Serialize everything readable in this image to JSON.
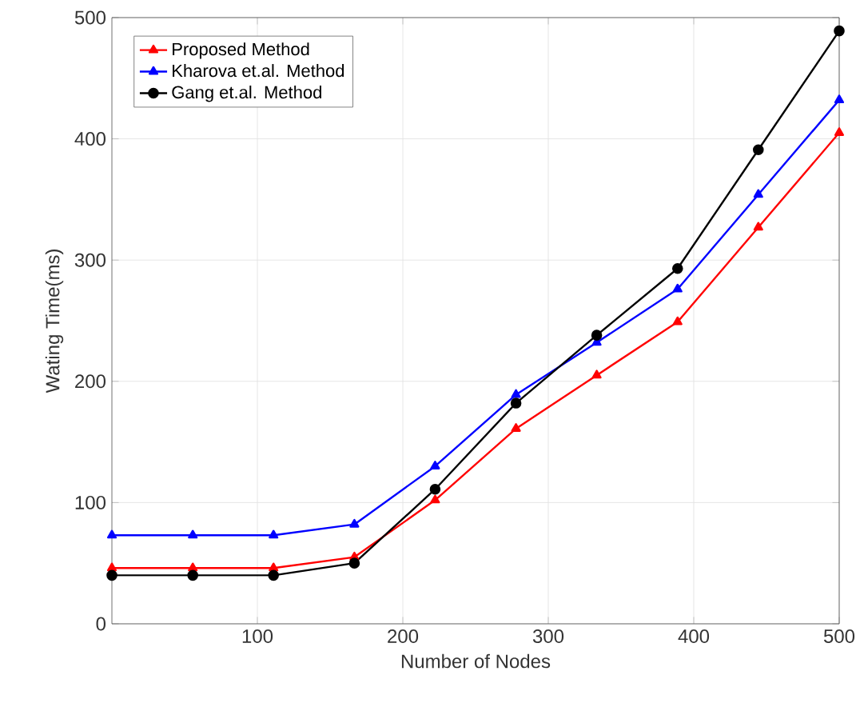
{
  "chart_data": {
    "type": "line",
    "xlabel": "Number of Nodes",
    "ylabel": "Wating Time(ms)",
    "x": [
      0,
      55.6,
      111.1,
      166.7,
      222.2,
      277.8,
      333.3,
      388.9,
      444.4,
      500
    ],
    "series": [
      {
        "name": "Proposed Method",
        "color": "#ff0000",
        "marker": "triangle",
        "values": [
          46,
          46,
          46,
          55,
          102,
          161,
          205,
          249,
          327,
          405
        ]
      },
      {
        "name": "Kharova et.al. Method",
        "color": "#0000ff",
        "marker": "triangle",
        "values": [
          73,
          73,
          73,
          82,
          130,
          189,
          232,
          276,
          354,
          432
        ]
      },
      {
        "name": "Gang et.al. Method",
        "color": "#000000",
        "marker": "circle",
        "values": [
          40,
          40,
          40,
          50,
          111,
          182,
          238,
          293,
          391,
          489
        ]
      }
    ],
    "xlim": [
      0,
      500
    ],
    "xticks": [
      100,
      200,
      300,
      400,
      500
    ],
    "ylim": [
      0,
      500
    ],
    "yticks": [
      0,
      100,
      200,
      300,
      400,
      500
    ],
    "grid": true,
    "legend": "top left",
    "line_style": "solid"
  }
}
